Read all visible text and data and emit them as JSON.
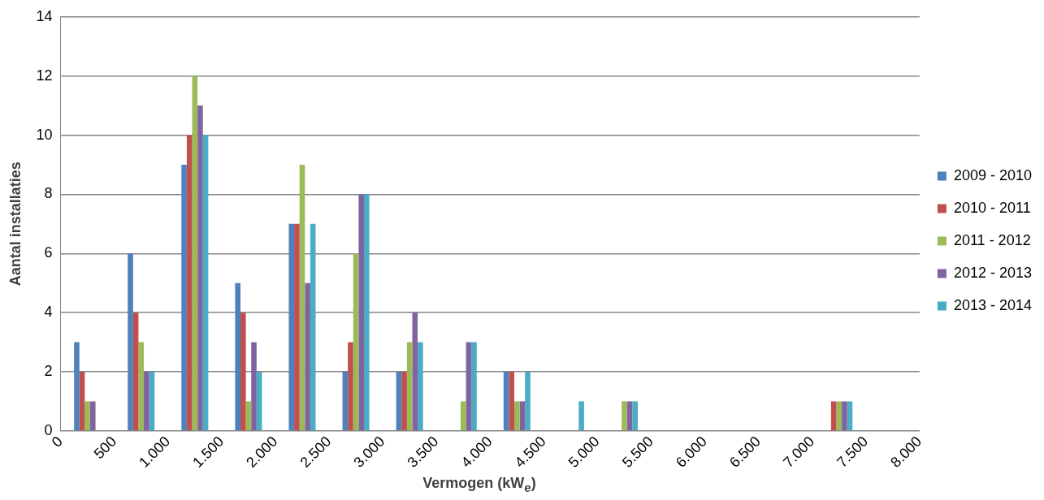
{
  "chart_data": {
    "type": "bar",
    "xlabel": "Vermogen (kW$_{e}$)",
    "ylabel": "Aantal installaties",
    "x": [
      250,
      750,
      1250,
      1750,
      2250,
      2750,
      3250,
      3750,
      4250,
      4750,
      5250,
      5750,
      6250,
      6750,
      7250,
      7750
    ],
    "series": [
      {
        "name": "2009 - 2010",
        "color": "#4f81bd",
        "values": [
          3,
          6,
          9,
          5,
          7,
          2,
          2,
          0,
          2,
          0,
          0,
          0,
          0,
          0,
          0,
          0
        ]
      },
      {
        "name": "2010 - 2011",
        "color": "#c0504d",
        "values": [
          2,
          4,
          10,
          4,
          7,
          3,
          2,
          0,
          2,
          0,
          0,
          0,
          0,
          0,
          1,
          0
        ]
      },
      {
        "name": "2011 - 2012",
        "color": "#9bbb59",
        "values": [
          1,
          3,
          12,
          1,
          9,
          6,
          3,
          1,
          1,
          0,
          1,
          0,
          0,
          0,
          1,
          0
        ]
      },
      {
        "name": "2012 - 2013",
        "color": "#8064a2",
        "values": [
          1,
          2,
          11,
          3,
          5,
          8,
          4,
          3,
          1,
          0,
          1,
          0,
          0,
          0,
          1,
          0
        ]
      },
      {
        "name": "2013 - 2014",
        "color": "#4bacc6",
        "values": [
          0,
          2,
          10,
          2,
          7,
          8,
          3,
          3,
          2,
          1,
          1,
          0,
          0,
          0,
          1,
          0
        ]
      }
    ],
    "xlim": [
      0,
      8000
    ],
    "xticks": [
      0,
      500,
      {
        "value": 1000,
        "label": "1.000"
      },
      {
        "value": 1500,
        "label": "1.500"
      },
      {
        "value": 2000,
        "label": "2.000"
      },
      {
        "value": 2500,
        "label": "2.500"
      },
      {
        "value": 3000,
        "label": "3.000"
      },
      {
        "value": 3500,
        "label": "3.500"
      },
      {
        "value": 4000,
        "label": "4.000"
      },
      {
        "value": 4500,
        "label": "4.500"
      },
      {
        "value": 5000,
        "label": "5.000"
      },
      {
        "value": 5500,
        "label": "5.500"
      },
      {
        "value": 6000,
        "label": "6.000"
      },
      {
        "value": 6500,
        "label": "6.500"
      },
      {
        "value": 7000,
        "label": "7.000"
      },
      {
        "value": 7500,
        "label": "7.500"
      },
      {
        "value": 8000,
        "label": "8.000"
      }
    ],
    "ylim": [
      0,
      14
    ],
    "yticks": [
      0,
      2,
      4,
      6,
      8,
      10,
      12,
      14
    ],
    "grid": "y",
    "legend": "right"
  }
}
